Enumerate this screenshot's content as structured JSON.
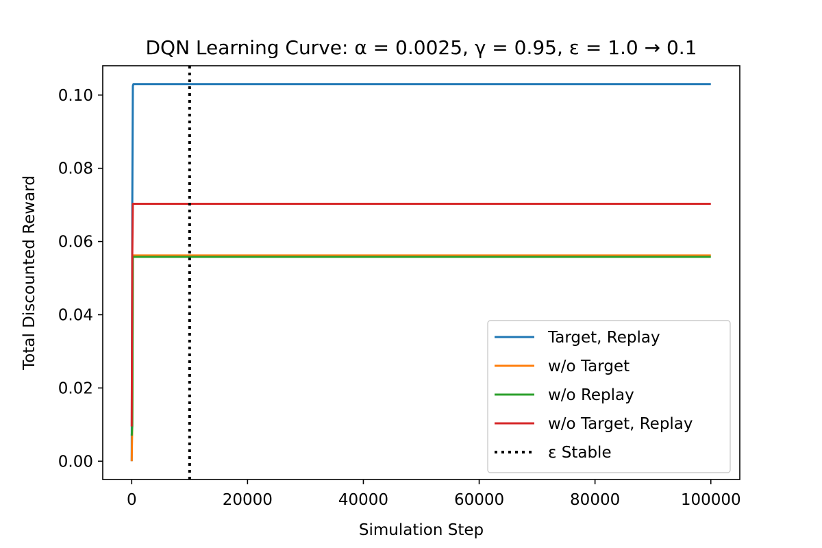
{
  "chart_data": {
    "type": "line",
    "title": "DQN Learning Curve: α = 0.0025, γ = 0.95, ε = 1.0 → 0.1",
    "xlabel": "Simulation Step",
    "ylabel": "Total Discounted Reward",
    "xlim": [
      -5000,
      105000
    ],
    "ylim": [
      -0.005,
      0.108
    ],
    "xticks": [
      0,
      20000,
      40000,
      60000,
      80000,
      100000
    ],
    "xtick_labels": [
      "0",
      "20000",
      "40000",
      "60000",
      "80000",
      "100000"
    ],
    "yticks": [
      0.0,
      0.02,
      0.04,
      0.06,
      0.08,
      0.1
    ],
    "ytick_labels": [
      "0.00",
      "0.02",
      "0.04",
      "0.06",
      "0.08",
      "0.10"
    ],
    "grid": false,
    "legend_position": "lower-right",
    "series": [
      {
        "name": "Target, Replay",
        "color": "#1f77b4",
        "style": "solid",
        "x": [
          0,
          100,
          200,
          300,
          500,
          1000,
          100000
        ],
        "y": [
          0.0,
          0.07,
          0.1025,
          0.103,
          0.103,
          0.103,
          0.103
        ]
      },
      {
        "name": "w/o Target",
        "color": "#ff7f0e",
        "style": "solid",
        "x": [
          0,
          100,
          200,
          500,
          100000
        ],
        "y": [
          0.0,
          0.01,
          0.0562,
          0.0562,
          0.0562
        ]
      },
      {
        "name": "w/o Replay",
        "color": "#2ca02c",
        "style": "solid",
        "x": [
          0,
          100,
          200,
          500,
          100000
        ],
        "y": [
          0.007,
          0.0095,
          0.0558,
          0.0558,
          0.0558
        ]
      },
      {
        "name": "w/o Target, Replay",
        "color": "#d62728",
        "style": "solid",
        "x": [
          0,
          100,
          200,
          500,
          100000
        ],
        "y": [
          0.0095,
          0.056,
          0.0703,
          0.0703,
          0.0703
        ]
      }
    ],
    "vlines": [
      {
        "name": "ε Stable",
        "x": 10000,
        "color": "#000000",
        "style": "dotted"
      }
    ]
  }
}
